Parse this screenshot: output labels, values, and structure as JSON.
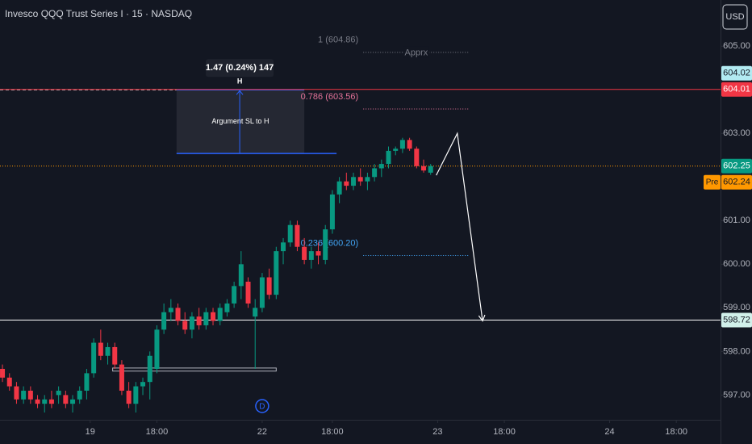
{
  "chart_data": {
    "type": "candlestick",
    "title": "Invesco QQQ Trust Series I · 15 · NASDAQ",
    "currency": "USD",
    "up_color": "#089981",
    "down_color": "#f23645",
    "open": [
      597.6,
      597.4,
      597.2,
      596.9,
      597.1,
      596.9,
      596.8,
      596.9,
      597.0,
      597.0,
      596.8,
      596.9,
      597.1,
      597.5,
      598.2,
      597.9,
      598.1,
      597.7,
      597.1,
      596.8,
      597.2,
      597.3,
      597.6,
      598.5,
      598.9,
      599.0,
      598.7,
      598.5,
      598.8,
      598.6,
      598.9,
      598.7,
      598.9,
      599.1,
      599.5,
      599.6,
      598.8,
      599.0,
      599.7,
      599.3,
      600.3,
      600.5,
      600.9,
      600.4,
      600.1,
      600.3,
      600.1,
      600.8,
      601.6,
      601.9,
      601.8,
      602.0,
      601.9,
      602.0,
      602.2,
      602.3,
      602.6,
      602.65,
      602.85,
      602.65,
      602.25,
      602.1
    ],
    "high": [
      597.7,
      597.5,
      597.3,
      597.2,
      597.2,
      597.0,
      597.0,
      597.1,
      597.2,
      597.1,
      597.0,
      597.2,
      597.6,
      598.3,
      598.5,
      598.2,
      598.2,
      597.8,
      597.3,
      597.3,
      597.4,
      598.0,
      598.6,
      599.1,
      599.2,
      599.1,
      598.9,
      598.9,
      599.0,
      599.0,
      599.0,
      599.1,
      599.2,
      599.6,
      600.3,
      599.7,
      599.2,
      599.8,
      599.9,
      600.4,
      600.6,
      601.0,
      601.0,
      600.6,
      600.4,
      600.5,
      600.9,
      601.7,
      602.0,
      602.1,
      602.1,
      602.2,
      602.1,
      602.3,
      602.4,
      602.7,
      602.7,
      602.9,
      602.9,
      602.7,
      602.4,
      602.3
    ],
    "low": [
      597.3,
      597.1,
      596.8,
      596.8,
      596.8,
      596.7,
      596.6,
      596.7,
      596.8,
      596.7,
      596.6,
      596.8,
      596.9,
      597.4,
      597.8,
      597.7,
      597.6,
      597.0,
      596.7,
      596.6,
      597.0,
      596.9,
      597.5,
      598.4,
      598.7,
      598.6,
      598.4,
      598.3,
      598.5,
      598.5,
      598.6,
      598.6,
      598.8,
      599.0,
      599.2,
      599.0,
      597.6,
      598.9,
      599.2,
      599.2,
      600.0,
      600.4,
      600.3,
      600.0,
      599.9,
      600.0,
      600.0,
      600.7,
      601.4,
      601.7,
      601.7,
      601.8,
      601.7,
      601.9,
      602.0,
      602.2,
      602.5,
      602.55,
      602.6,
      602.2,
      602.1,
      602.05
    ],
    "close": [
      597.4,
      597.2,
      596.9,
      597.1,
      596.9,
      596.8,
      596.9,
      596.8,
      597.1,
      596.8,
      596.9,
      597.1,
      597.5,
      598.2,
      597.9,
      598.1,
      597.7,
      597.1,
      596.8,
      597.2,
      597.3,
      597.9,
      598.5,
      598.9,
      599.0,
      598.7,
      598.5,
      598.8,
      598.6,
      598.9,
      598.7,
      599.0,
      599.1,
      599.5,
      600.0,
      599.1,
      599.0,
      599.7,
      599.3,
      600.3,
      600.5,
      600.9,
      600.4,
      600.1,
      600.3,
      600.2,
      600.8,
      601.6,
      601.9,
      601.8,
      602.0,
      601.9,
      602.0,
      602.2,
      602.3,
      602.6,
      602.65,
      602.85,
      602.65,
      602.25,
      602.15,
      602.25
    ],
    "xlim": [
      -0.35,
      102.3
    ],
    "xticks": [
      {
        "value": 12.5,
        "label": "19"
      },
      {
        "value": 22,
        "label": "18:00"
      },
      {
        "value": 37,
        "label": "22"
      },
      {
        "value": 47,
        "label": "18:00"
      },
      {
        "value": 62,
        "label": "23"
      },
      {
        "value": 71.5,
        "label": "18:00"
      },
      {
        "value": 86.5,
        "label": "24"
      },
      {
        "value": 96,
        "label": "18:00"
      }
    ],
    "ylim": [
      596.47,
      606.06
    ],
    "yticks": [
      {
        "value": 597,
        "label": "597.00"
      },
      {
        "value": 598,
        "label": "598.00"
      },
      {
        "value": 599,
        "label": "599.00"
      },
      {
        "value": 600,
        "label": "600.00"
      },
      {
        "value": 601,
        "label": "601.00"
      },
      {
        "value": 603,
        "label": "603.00"
      },
      {
        "value": 605,
        "label": "605.00"
      }
    ],
    "price_tags": [
      {
        "value": 604.02,
        "color": "#b2ebf2",
        "text_color": "#131722"
      },
      {
        "value": 604.01,
        "color": "#f23645",
        "text_color": "#ffffff",
        "line": "solid"
      },
      {
        "value": 602.25,
        "color": "#089981",
        "text_color": "#ffffff",
        "line": "dotted",
        "line_color": "#ff9800"
      },
      {
        "value": 602.24,
        "color": "#ff9800",
        "text_color": "#131722",
        "prefix": "Pre"
      },
      {
        "value": 598.72,
        "color": "#d1f0ea",
        "text_color": "#131722",
        "line": "solid",
        "line_color": "#ffffff"
      }
    ],
    "fib_levels": [
      {
        "label": "1 (604.86)",
        "price": 604.86,
        "color": "#787b86",
        "x_from": 51.4,
        "x_to": 66.5,
        "note": "Apprx"
      },
      {
        "label": "0.786 (603.56)",
        "price": 603.56,
        "color": "#e57399",
        "x_from": 51.4,
        "x_to": 66.5
      },
      {
        "label": "0.236 (600.20)",
        "price": 600.2,
        "color": "#42a5f5",
        "x_from": 51.4,
        "x_to": 66.5
      }
    ],
    "measure": {
      "label": "1.47 (0.24%) 147",
      "sub": "H",
      "text": "Argument SL to H",
      "top": 604.0,
      "bottom": 602.54,
      "x_from": 24.8,
      "x_to": 43,
      "x_arrow": 33.8
    },
    "zone": {
      "top": 597.62,
      "bottom": 597.55,
      "x_from": 15.7,
      "x_to": 39
    },
    "marker": {
      "label": "D",
      "x": 37
    },
    "projection": {
      "x": [
        61.8,
        64.8,
        68.4
      ],
      "y": [
        602.04,
        603.0,
        598.7
      ]
    }
  }
}
